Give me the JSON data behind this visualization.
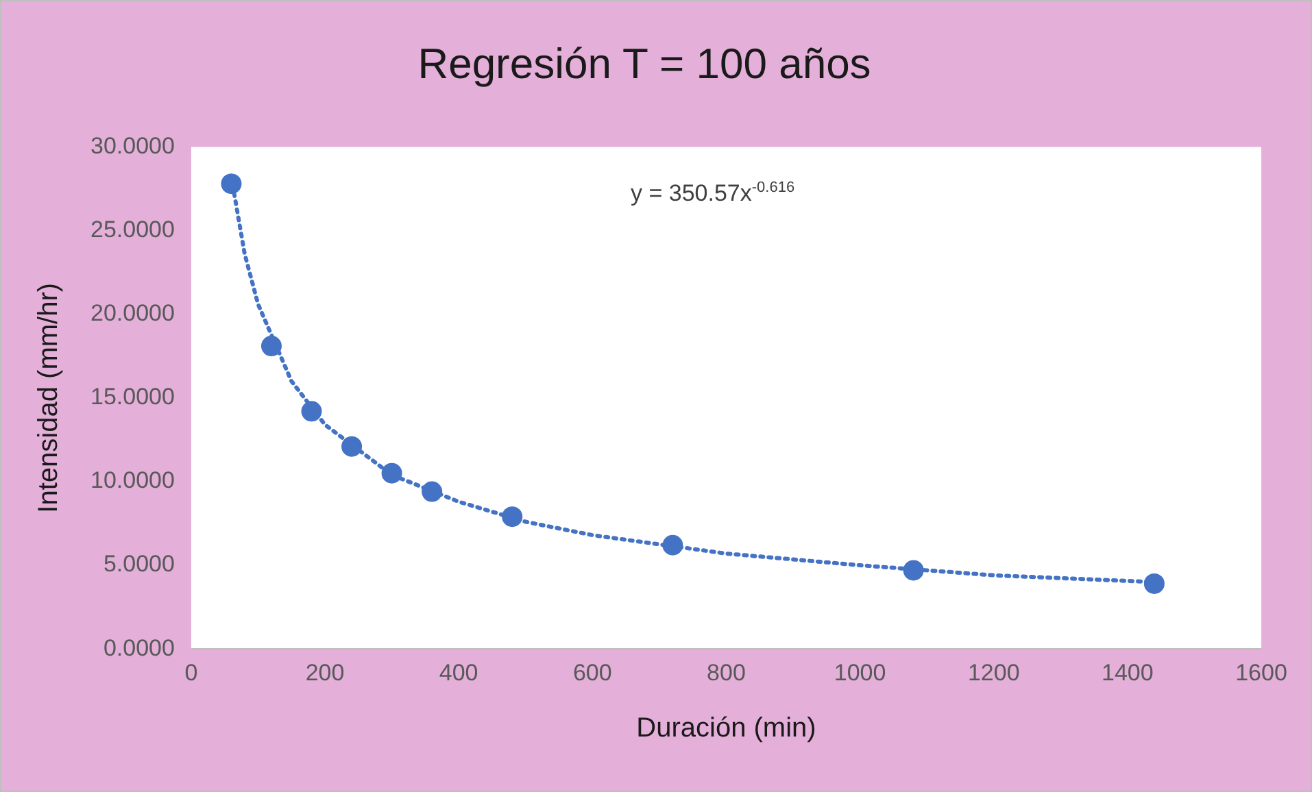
{
  "chart_data": {
    "type": "scatter",
    "title": "Regresión T = 100 años",
    "xlabel": "Duración (min)",
    "ylabel": "Intensidad (mm/hr)",
    "annotations": [
      "y = 350.57x$^{-0.616}$"
    ],
    "x": [
      60,
      120,
      180,
      240,
      300,
      360,
      480,
      720,
      1080,
      1440
    ],
    "series": [
      {
        "type": "scatter",
        "color": "#4472c4",
        "marker": "circle",
        "values": [
          27.8,
          18.1,
          14.2,
          12.1,
          10.5,
          9.4,
          7.9,
          6.2,
          4.7,
          3.9
        ]
      },
      {
        "type": "line",
        "color": "#4472c4",
        "marker": "none",
        "line_style": "dotted",
        "x": [
          60,
          80,
          100,
          150,
          200,
          300,
          400,
          500,
          600,
          800,
          1000,
          1200,
          1440
        ],
        "values": [
          28.2,
          23.6,
          20.6,
          16.0,
          13.4,
          10.4,
          8.8,
          7.6,
          6.8,
          5.7,
          5.0,
          4.4,
          4.0
        ]
      }
    ],
    "xlim": [
      0,
      1600
    ],
    "xticks": [
      0,
      200,
      400,
      600,
      800,
      1000,
      1200,
      1400,
      1600
    ],
    "ylim": [
      0,
      30
    ],
    "yticks": [
      {
        "value": 0,
        "label": "0.0000"
      },
      {
        "value": 5,
        "label": "5.0000"
      },
      {
        "value": 10,
        "label": "10.0000"
      },
      {
        "value": 15,
        "label": "15.0000"
      },
      {
        "value": 20,
        "label": "20.0000"
      },
      {
        "value": 25,
        "label": "25.0000"
      },
      {
        "value": 30,
        "label": "30.0000"
      }
    ],
    "grid": false,
    "legend": false
  }
}
